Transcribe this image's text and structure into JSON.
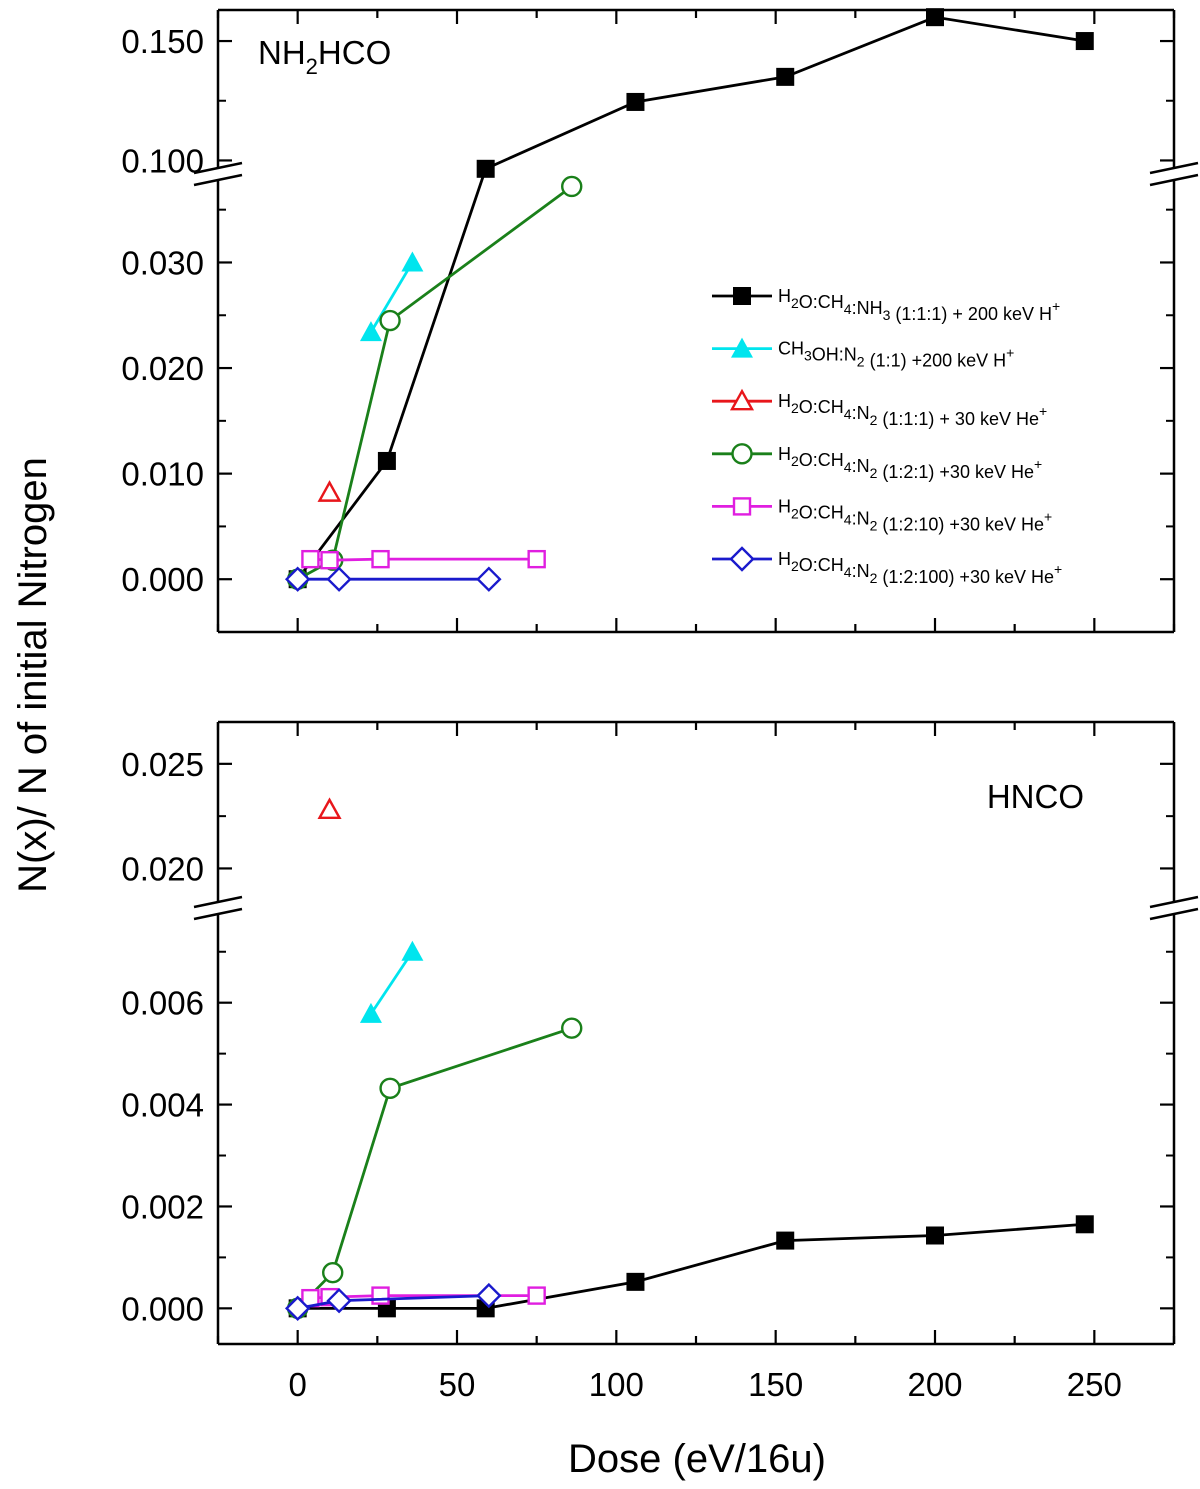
{
  "chart_data": {
    "type": "line",
    "ylabel": "N(x)/ N of initial Nitrogen",
    "xlabel": "Dose (eV/16u)",
    "xlim": [
      -25,
      275
    ],
    "x_ticks": [
      "0",
      "50",
      "100",
      "150",
      "200",
      "250"
    ],
    "series_styles": [
      {
        "name": "H2O:CH4:NH3 (1:1:1) + 200 keV H+",
        "color": "#000000",
        "marker": "filled-square"
      },
      {
        "name": "CH3OH:N2 (1:1) +200 keV H+",
        "color": "#00e5ee",
        "marker": "filled-triangle"
      },
      {
        "name": "H2O:CH4:N2 (1:1:1) + 30 keV He+",
        "color": "#e8161b",
        "marker": "open-triangle"
      },
      {
        "name": "H2O:CH4:N2 (1:2:1) +30 keV He+",
        "color": "#1a801a",
        "marker": "open-circle"
      },
      {
        "name": "H2O:CH4:N2 (1:2:10) +30 keV He+",
        "color": "#e01ee0",
        "marker": "open-square"
      },
      {
        "name": "H2O:CH4:N2 (1:2:100) +30 keV He+",
        "color": "#1a1acc",
        "marker": "open-diamond"
      }
    ],
    "panels": [
      {
        "label": "NH2HCO",
        "y_axis": "broken",
        "y_lower_range": [
          -0.005,
          0.038
        ],
        "y_upper_range": [
          0.096,
          0.163
        ],
        "y_ticks": [
          "0.000",
          "0.010",
          "0.020",
          "0.030",
          "0.100",
          "0.150"
        ],
        "legend": "right",
        "series": [
          {
            "name": "H2O:CH4:NH3 (1:1:1) + 200 keV H+",
            "points": [
              [
                0,
                0.0
              ],
              [
                28,
                0.0112
              ],
              [
                59,
                0.0965
              ],
              [
                106,
                0.1245
              ],
              [
                153,
                0.135
              ],
              [
                200,
                0.16
              ],
              [
                247,
                0.15
              ]
            ]
          },
          {
            "name": "CH3OH:N2 (1:1) +200 keV H+",
            "points": [
              [
                23,
                0.0234
              ],
              [
                36,
                0.03
              ]
            ]
          },
          {
            "name": "H2O:CH4:N2 (1:1:1) + 30 keV He+",
            "points": [
              [
                10,
                0.0082
              ]
            ]
          },
          {
            "name": "H2O:CH4:N2 (1:2:1) +30 keV He+",
            "points": [
              [
                0,
                0.0
              ],
              [
                11,
                0.0018
              ],
              [
                29,
                0.0245
              ],
              [
                86,
                0.0372
              ]
            ]
          },
          {
            "name": "H2O:CH4:N2 (1:2:10) +30 keV He+",
            "points": [
              [
                4,
                0.0019
              ],
              [
                10,
                0.0018
              ],
              [
                26,
                0.0019
              ],
              [
                75,
                0.0019
              ]
            ]
          },
          {
            "name": "H2O:CH4:N2 (1:2:100) +30 keV He+",
            "points": [
              [
                0,
                0.0
              ],
              [
                13,
                0.0
              ],
              [
                60,
                0.0
              ]
            ]
          }
        ]
      },
      {
        "label": "HNCO",
        "y_axis": "broken",
        "y_lower_range": [
          -0.0007,
          0.0078
        ],
        "y_upper_range": [
          0.0183,
          0.027
        ],
        "y_ticks": [
          "0.000",
          "0.002",
          "0.004",
          "0.006",
          "0.020",
          "0.025"
        ],
        "series": [
          {
            "name": "H2O:CH4:NH3 (1:1:1) + 200 keV H+",
            "points": [
              [
                0,
                0.0
              ],
              [
                28,
                0.0
              ],
              [
                59,
                0.0
              ],
              [
                106,
                0.00052
              ],
              [
                153,
                0.00133
              ],
              [
                200,
                0.00143
              ],
              [
                247,
                0.00165
              ]
            ]
          },
          {
            "name": "CH3OH:N2 (1:1) +200 keV H+",
            "points": [
              [
                23,
                0.00578
              ],
              [
                36,
                0.007
              ]
            ]
          },
          {
            "name": "H2O:CH4:N2 (1:1:1) + 30 keV He+",
            "points": [
              [
                10,
                0.0228
              ]
            ]
          },
          {
            "name": "H2O:CH4:N2 (1:2:1) +30 keV He+",
            "points": [
              [
                0,
                0.0
              ],
              [
                11,
                0.0007
              ],
              [
                29,
                0.00432
              ],
              [
                86,
                0.0055
              ]
            ]
          },
          {
            "name": "H2O:CH4:N2 (1:2:10) +30 keV He+",
            "points": [
              [
                4,
                0.0002
              ],
              [
                10,
                0.00022
              ],
              [
                26,
                0.00025
              ],
              [
                75,
                0.00025
              ]
            ]
          },
          {
            "name": "H2O:CH4:N2 (1:2:100) +30 keV He+",
            "points": [
              [
                0,
                0.0
              ],
              [
                13,
                0.00015
              ],
              [
                60,
                0.00025
              ]
            ]
          }
        ]
      }
    ]
  }
}
